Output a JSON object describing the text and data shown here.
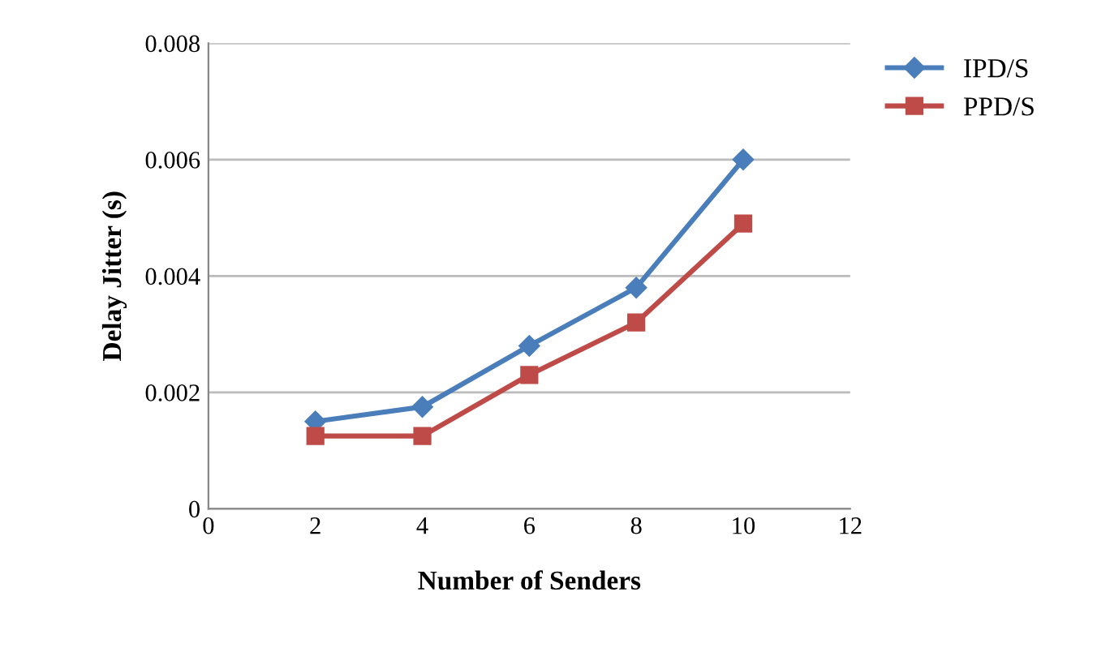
{
  "chart_data": {
    "type": "line",
    "xlabel": "Number of Senders",
    "ylabel": "Delay Jitter (s)",
    "x": [
      2,
      4,
      6,
      8,
      10
    ],
    "series": [
      {
        "name": "IPD/S",
        "color": "#4a7ebb",
        "marker": "diamond",
        "values": [
          0.0015,
          0.00175,
          0.0028,
          0.0038,
          0.006
        ]
      },
      {
        "name": "PPD/S",
        "color": "#be4b48",
        "marker": "square",
        "values": [
          0.00125,
          0.00125,
          0.0023,
          0.0032,
          0.0049
        ]
      }
    ],
    "xlim": [
      0,
      12
    ],
    "xticks": [
      0,
      2,
      4,
      6,
      8,
      10,
      12
    ],
    "ylim": [
      0,
      0.008
    ],
    "yticks": [
      0,
      0.002,
      0.004,
      0.006,
      0.008
    ],
    "grid": "y",
    "legend": "top right"
  }
}
